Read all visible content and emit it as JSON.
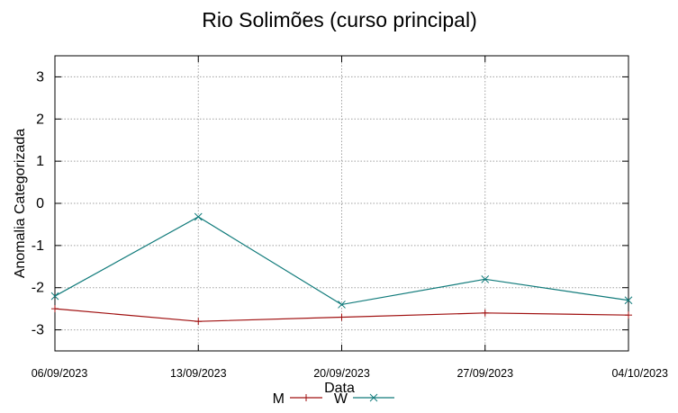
{
  "chart_data": {
    "type": "line",
    "title": "Rio Solimões (curso principal)",
    "xlabel": "Data",
    "ylabel": "Anomalia Categorizada",
    "categories": [
      "06/09/2023",
      "13/09/2023",
      "20/09/2023",
      "27/09/2023",
      "04/10/2023"
    ],
    "yticks": [
      "3",
      "2",
      "1",
      "0",
      "-1",
      "-2",
      "-3"
    ],
    "ylim": [
      -3.5,
      3.5
    ],
    "grid": true,
    "legend_position": "bottom",
    "series": [
      {
        "name": "M",
        "color": "#a01010",
        "marker": "plus",
        "values": [
          -2.5,
          -2.8,
          -2.7,
          -2.6,
          -2.65
        ]
      },
      {
        "name": "W",
        "color": "#117b7b",
        "marker": "cross",
        "values": [
          -2.2,
          -0.32,
          -2.4,
          -1.8,
          -2.3
        ]
      }
    ]
  }
}
